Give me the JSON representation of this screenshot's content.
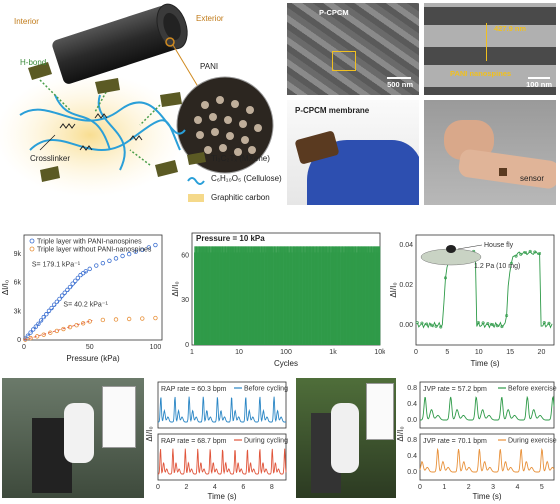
{
  "schematic": {
    "interior": "Interior",
    "exterior": "Exterior",
    "pani": "PANI",
    "hbond": "H-bond",
    "crosslinker": "Crosslinker",
    "legend": [
      {
        "icon": "mxene-flake",
        "text": "Ti₃C₂Tₓ (MXene)",
        "color": "#5b5a24"
      },
      {
        "icon": "cellulose-fiber",
        "text": "C₆H₁₀O₅ (Cellulose)",
        "color": "#2a9fd8"
      },
      {
        "icon": "graphitic-carbon",
        "text": "Graphitic carbon",
        "color": "#f5d98a"
      }
    ]
  },
  "sem": {
    "left_title": "P-CPCM",
    "left_scale": "500 nm",
    "right_width": "427.9 nm",
    "right_label": "PANI nanospines",
    "right_scale": "100 nm"
  },
  "photos": {
    "membrane_label": "P-CPCM membrane",
    "sensor_label": "sensor"
  },
  "chart_pressure": {
    "chart_data": {
      "type": "scatter",
      "xlabel": "Pressure (kPa)",
      "ylabel": "ΔI/I₀",
      "xlim": [
        0,
        105
      ],
      "ylim": [
        0,
        11000
      ],
      "xticks": [
        "0",
        "50",
        "100"
      ],
      "yticks": [
        "0",
        "3k",
        "6k",
        "9k"
      ],
      "annot_blue": "S= 179.1 kPa⁻¹",
      "annot_orange": "S= 40.2 kPa⁻¹",
      "series": [
        {
          "name": "Triple layer with PANI-nanospines",
          "color": "#3b6fd1",
          "x": [
            1,
            3,
            5,
            7,
            9,
            11,
            13,
            15,
            17,
            19,
            21,
            23,
            25,
            27,
            29,
            31,
            33,
            35,
            37,
            39,
            41,
            43,
            45,
            47,
            50,
            55,
            60,
            65,
            70,
            75,
            80,
            85,
            90,
            95,
            100
          ],
          "y": [
            150,
            450,
            780,
            1100,
            1400,
            1700,
            2050,
            2400,
            2700,
            3050,
            3350,
            3700,
            4000,
            4300,
            4650,
            4950,
            5250,
            5550,
            5900,
            6200,
            6500,
            6800,
            7000,
            7200,
            7450,
            7800,
            8050,
            8300,
            8550,
            8800,
            9000,
            9250,
            9450,
            9700,
            9950
          ]
        },
        {
          "name": "Triple layer without PANI-nanospines",
          "color": "#e8913a",
          "x": [
            1,
            5,
            10,
            15,
            20,
            25,
            30,
            35,
            40,
            45,
            50,
            60,
            70,
            80,
            90,
            100
          ],
          "y": [
            40,
            200,
            380,
            560,
            760,
            950,
            1150,
            1350,
            1550,
            1750,
            1950,
            2100,
            2150,
            2200,
            2250,
            2300
          ]
        }
      ]
    }
  },
  "chart_cycling": {
    "chart_data": {
      "type": "line",
      "title": "Pressure = 10 kPa",
      "xlabel": "Cycles",
      "ylabel": "ΔI/I₀",
      "xscale": "log",
      "xticks": [
        "1",
        "10",
        "100",
        "1k",
        "10k"
      ],
      "yticks": [
        "0",
        "30",
        "60"
      ],
      "ylim": [
        0,
        75
      ],
      "peak": 66,
      "color": "#2e9a48"
    }
  },
  "chart_housefly": {
    "chart_data": {
      "type": "line",
      "xlabel": "Time (s)",
      "ylabel": "ΔI/I₀",
      "xlim": [
        0,
        22
      ],
      "ylim": [
        -0.01,
        0.045
      ],
      "xticks": [
        "0",
        "5",
        "10",
        "15",
        "20"
      ],
      "yticks": [
        "0.00",
        "0.02",
        "0.04"
      ],
      "legend": "House fly",
      "annotation": "1.2 Pa (10 mg)",
      "color": "#2e9a48",
      "on_intervals": [
        [
          4.3,
          9.6
        ],
        [
          14.4,
          19.8
        ]
      ],
      "high": 0.036,
      "low": 0.0
    }
  },
  "chart_rap": {
    "chart_data": {
      "type": "line",
      "xlabel": "Time (s)",
      "ylabel": "ΔI/I₀",
      "xlim": [
        0,
        9
      ],
      "xticks": [
        "0",
        "2",
        "4",
        "6",
        "8"
      ],
      "series": [
        {
          "name": "Before cycling",
          "rate": "RAP rate = 60.3 bpm",
          "color": "#2a86c5",
          "bpm": 60.3
        },
        {
          "name": "During cycling",
          "rate": "RAP rate = 68.7 bpm",
          "color": "#e0553b",
          "bpm": 68.7
        }
      ]
    }
  },
  "chart_jvp": {
    "chart_data": {
      "type": "line",
      "xlabel": "Time (s)",
      "ylabel": "ΔI/I₀",
      "xlim": [
        0,
        5.5
      ],
      "xticks": [
        "0",
        "1",
        "2",
        "3",
        "4",
        "5"
      ],
      "yticks_top": [
        "0.0",
        "0.4",
        "0.8"
      ],
      "yticks_bottom": [
        "0.0",
        "0.4",
        "0.8"
      ],
      "series": [
        {
          "name": "Before exercise",
          "rate": "JVP rate = 57.2 bpm",
          "color": "#2e9a48",
          "bpm": 57.2
        },
        {
          "name": "During exercise",
          "rate": "JVP rate = 70.1 bpm",
          "color": "#e8913a",
          "bpm": 70.1
        }
      ]
    }
  }
}
